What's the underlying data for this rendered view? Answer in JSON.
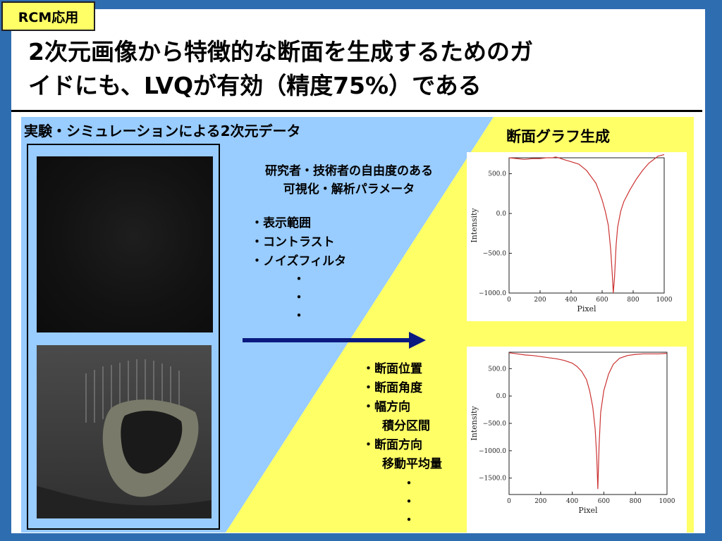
{
  "slide": {
    "tag": "RCM応用",
    "title_line1": "2次元画像から特徴的な断面を生成するためのガ",
    "title_line2": "イドにも、LVQが有効（精度75%）である"
  },
  "panel": {
    "section_title": "実験・シミュレーションによる2次元データ",
    "graph_title": "断面グラフ生成",
    "param_note_line1": "研究者・技術者の自由度のある",
    "param_note_line2": "可視化・解析パラメータ",
    "param_items": [
      "・表示範囲",
      "・コントラスト",
      "・ノイズフィルタ"
    ],
    "section_items": [
      "・断面位置",
      "・断面角度",
      "・幅方向",
      "積分区間",
      "・断面方向",
      "移動平均量"
    ],
    "dot": "・"
  },
  "colors": {
    "frame_blue": "#2f6db1",
    "panel_blue": "#99ccff",
    "panel_yellow": "#ffff66",
    "arrow": "#0a1a80",
    "curve": "#cc3333"
  },
  "icons": {
    "arrow": "right-arrow-icon"
  },
  "chart_data": [
    {
      "type": "line",
      "title": "",
      "xlabel": "Pixel",
      "ylabel": "Intensity",
      "xlim": [
        0,
        1000
      ],
      "ylim": [
        -1000,
        700
      ],
      "xticks": [
        "0",
        "200",
        "400",
        "600",
        "800",
        "1000"
      ],
      "yticks": [
        "500.0",
        "0.0",
        "−500.0",
        "−1000.0"
      ],
      "ytick_values": [
        500,
        0,
        -500,
        -1000
      ],
      "series": [
        {
          "x": [
            0,
            50,
            100,
            150,
            200,
            240,
            260,
            280,
            300,
            320,
            350,
            400,
            450,
            500,
            530,
            560,
            580,
            600,
            620,
            640,
            655,
            665,
            672,
            680,
            690,
            700,
            720,
            740,
            780,
            820,
            860,
            900,
            940,
            960,
            980,
            1000
          ],
          "y": [
            700,
            690,
            680,
            690,
            690,
            700,
            700,
            700,
            710,
            700,
            680,
            650,
            620,
            540,
            460,
            380,
            280,
            170,
            30,
            -150,
            -450,
            -750,
            -1000,
            -800,
            -400,
            -170,
            30,
            150,
            300,
            430,
            540,
            630,
            690,
            720,
            730,
            740
          ]
        }
      ]
    },
    {
      "type": "line",
      "title": "",
      "xlabel": "Pixel",
      "ylabel": "Intensity",
      "xlim": [
        0,
        1000
      ],
      "ylim": [
        -1800,
        800
      ],
      "xticks": [
        "0",
        "200",
        "400",
        "600",
        "800",
        "1000"
      ],
      "yticks": [
        "500.0",
        "0.0",
        "−500.0",
        "−1000.0",
        "−1500.0"
      ],
      "ytick_values": [
        500,
        0,
        -500,
        -1000,
        -1500
      ],
      "series": [
        {
          "x": [
            0,
            50,
            100,
            150,
            200,
            250,
            300,
            350,
            400,
            430,
            460,
            490,
            510,
            530,
            545,
            555,
            562,
            570,
            580,
            600,
            630,
            660,
            700,
            750,
            800,
            850,
            900,
            950,
            1000
          ],
          "y": [
            790,
            770,
            750,
            740,
            720,
            700,
            680,
            650,
            600,
            540,
            450,
            300,
            100,
            -200,
            -600,
            -1100,
            -1700,
            -900,
            -300,
            100,
            400,
            580,
            690,
            740,
            760,
            770,
            770,
            770,
            780
          ]
        }
      ]
    }
  ]
}
